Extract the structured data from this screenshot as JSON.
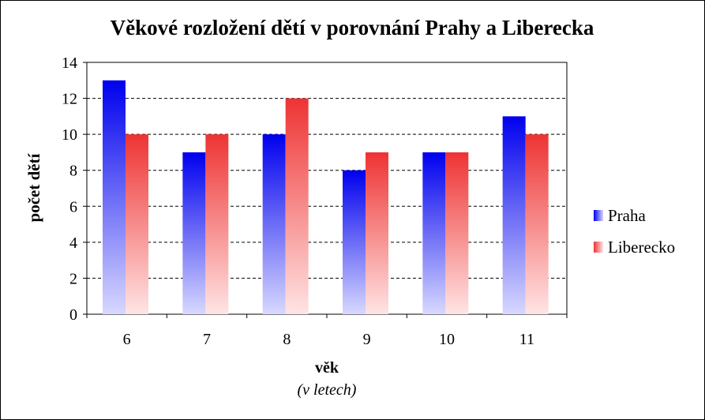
{
  "chart_data": {
    "type": "bar",
    "title": "Věkové rozložení dětí v porovnání Prahy a Liberecka",
    "xlabel": "věk",
    "xlabel_sub": "(v letech)",
    "ylabel": "počet dětí",
    "categories": [
      "6",
      "7",
      "8",
      "9",
      "10",
      "11"
    ],
    "ylim": [
      0,
      14
    ],
    "yticks": [
      0,
      2,
      4,
      6,
      8,
      10,
      12,
      14
    ],
    "grid": true,
    "legend_position": "right",
    "series": [
      {
        "name": "Praha",
        "values": [
          13,
          9,
          10,
          8,
          9,
          11
        ],
        "color_top": "#0000ee",
        "color_bottom": "#d8d8ff"
      },
      {
        "name": "Liberecko",
        "values": [
          10,
          10,
          12,
          9,
          9,
          10
        ],
        "color_top": "#ee3333",
        "color_bottom": "#ffe4e4"
      }
    ]
  }
}
